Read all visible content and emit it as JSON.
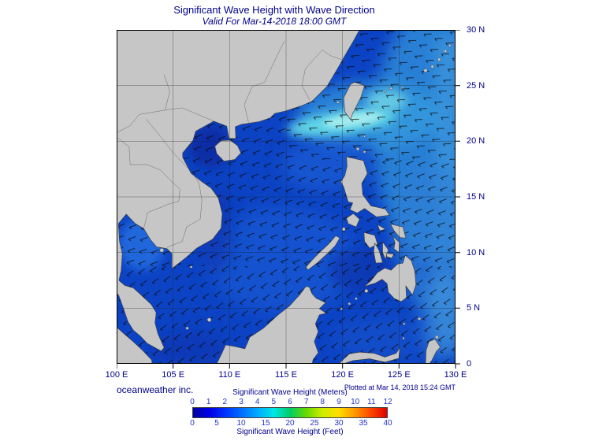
{
  "header": {
    "title": "Significant Wave Height with Wave Direction",
    "subtitle": "Valid For Mar-14-2018 18:00 GMT"
  },
  "map": {
    "lat_labels": [
      "30 N",
      "25 N",
      "20 N",
      "15 N",
      "10 N",
      "5 N",
      "0"
    ],
    "lon_labels": [
      "100 E",
      "105 E",
      "110 E",
      "115 E",
      "120 E",
      "125 E",
      "130 E"
    ],
    "region": "South China Sea / Philippine Sea",
    "wave_direction_summary": "arrows point generally west-southwest"
  },
  "footer": {
    "credit": "oceanweather inc.",
    "plotted": "Plotted at Mar 14, 2018 15:24 GMT"
  },
  "colorbar": {
    "meters_caption": "Significant Wave Height (Meters)",
    "feet_caption": "Significant Wave Height (Feet)",
    "meters_ticks": [
      "0",
      "1",
      "2",
      "3",
      "4",
      "5",
      "6",
      "7",
      "8",
      "9",
      "10",
      "11",
      "12"
    ],
    "feet_ticks": [
      "0",
      "5",
      "10",
      "15",
      "20",
      "25",
      "30",
      "35",
      "40"
    ],
    "gradient_colors": [
      "#0000a0",
      "#0000e6",
      "#0033ff",
      "#006eff",
      "#00aaff",
      "#00e6e6",
      "#00cc66",
      "#66d900",
      "#ccee00",
      "#ffdd00",
      "#ff9900",
      "#ff4400",
      "#dd0000"
    ],
    "ocean_colors": {
      "base_sea": "#0c43c4",
      "high_wave_patch": "#aef0f0",
      "land": "#c6c6c6"
    }
  }
}
